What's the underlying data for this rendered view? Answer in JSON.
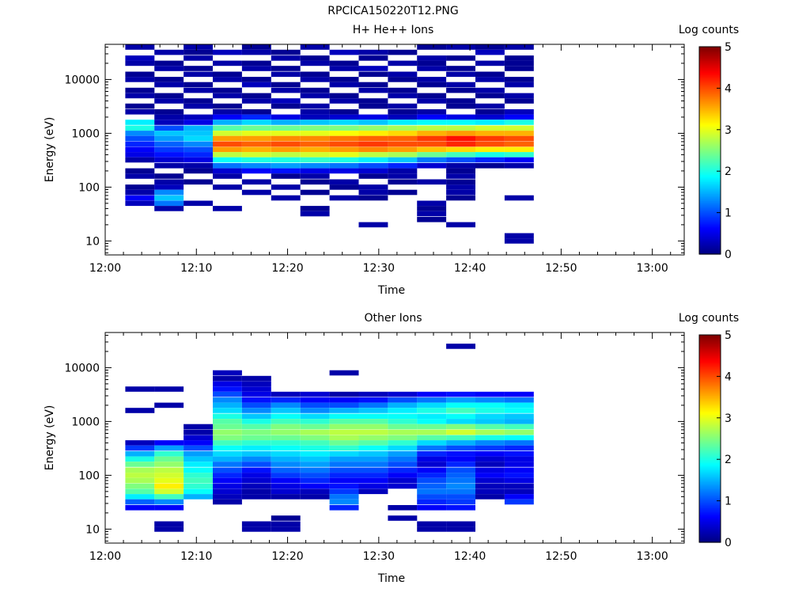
{
  "figure_title": "RPCICA150220T12.PNG",
  "colormap": [
    "#00007f",
    "#0000ff",
    "#007fff",
    "#00ffff",
    "#7fff7f",
    "#ffff00",
    "#ff7f00",
    "#ff0000",
    "#7f0000"
  ],
  "chart_data": [
    {
      "type": "heatmap",
      "title": "H+ He++ Ions",
      "xlabel": "Time",
      "ylabel": "Energy (eV)",
      "x_tick_labels": [
        "12:00",
        "12:10",
        "12:20",
        "12:30",
        "12:40",
        "12:50",
        "13:00"
      ],
      "x_ticks_minutes": [
        0,
        10,
        20,
        30,
        40,
        50,
        60
      ],
      "xlim_minutes": [
        0,
        63.5
      ],
      "y_scale": "log",
      "y_tick_labels": [
        "10",
        "100",
        "1000",
        "10000"
      ],
      "y_ticks": [
        10,
        100,
        1000,
        10000
      ],
      "ylim": [
        5.5,
        45000
      ],
      "colorbar": {
        "label": "Log counts",
        "ticks": [
          0,
          1,
          2,
          3,
          4,
          5
        ],
        "range": [
          0,
          5
        ]
      },
      "column_starts_minutes": [
        2.2,
        5.4,
        8.6,
        11.8,
        15.0,
        18.2,
        21.4,
        24.6,
        27.8,
        31.0,
        34.2,
        37.4,
        40.6,
        43.8
      ],
      "column_width_minutes": 3.2,
      "energy_bins_eV": [
        40000,
        32000,
        25000,
        20000,
        16000,
        12500,
        10000,
        8000,
        6300,
        5000,
        4000,
        3200,
        2500,
        2000,
        1600,
        1250,
        1000,
        800,
        630,
        500,
        400,
        320,
        250,
        200,
        160,
        125,
        100,
        80,
        63,
        50,
        40,
        32,
        25,
        20,
        16,
        12.5,
        10
      ],
      "log_counts": [
        [
          0.2,
          0,
          0.2,
          0,
          0.1,
          0,
          0.2,
          0,
          0,
          0,
          0.1,
          0.2,
          0.1,
          0.2
        ],
        [
          0,
          0.2,
          0.1,
          0.3,
          0.2,
          0.1,
          0,
          0.3,
          0.2,
          0.1,
          0,
          0,
          0.3,
          0
        ],
        [
          0.3,
          0,
          0.2,
          0,
          0,
          0.2,
          0.1,
          0,
          0.1,
          0,
          0.2,
          0.1,
          0,
          0.1
        ],
        [
          0.2,
          0.1,
          0,
          0.2,
          0.1,
          0,
          0.2,
          0.1,
          0,
          0.2,
          0.1,
          0,
          0.2,
          0.1
        ],
        [
          0,
          0.2,
          0.1,
          0,
          0.2,
          0.1,
          0,
          0.2,
          0.3,
          0,
          0.2,
          0.1,
          0,
          0.1
        ],
        [
          0.1,
          0,
          0.2,
          0.1,
          0,
          0.2,
          0.1,
          0,
          0.1,
          0.2,
          0,
          0.2,
          0.1,
          0
        ],
        [
          0.2,
          0.1,
          0,
          0.2,
          0.1,
          0,
          0.2,
          0.1,
          0,
          0.1,
          0.2,
          0,
          0.2,
          0.1
        ],
        [
          0,
          0.2,
          0.1,
          0,
          0.3,
          0.1,
          0,
          0.2,
          0.1,
          0,
          0.1,
          0.2,
          0,
          0.2
        ],
        [
          0.1,
          0,
          0.2,
          0.1,
          0,
          0.2,
          0.1,
          0,
          0.2,
          0.1,
          0,
          0.1,
          0.2,
          0
        ],
        [
          0.2,
          0.1,
          0,
          0.2,
          0.1,
          0,
          0.2,
          0.1,
          0,
          0.2,
          0.1,
          0,
          0.1,
          0.2
        ],
        [
          0,
          0.2,
          0.1,
          0,
          0.2,
          0.3,
          0,
          0.2,
          0.1,
          0,
          0.2,
          0.1,
          0,
          0.1
        ],
        [
          0.1,
          0,
          0.2,
          0.1,
          0,
          0.1,
          0.2,
          0,
          0.1,
          0.2,
          0,
          0.1,
          0.2,
          0
        ],
        [
          0.2,
          0.1,
          0,
          0.2,
          0.1,
          0,
          0.2,
          0.1,
          0,
          0.1,
          0.2,
          0,
          0.1,
          0.3
        ],
        [
          0,
          0.2,
          0.3,
          0.6,
          0.8,
          0.5,
          0.3,
          0.4,
          0.5,
          0.3,
          0.6,
          0.5,
          0.4,
          0.6
        ],
        [
          1.8,
          0.3,
          0.5,
          1.5,
          1.7,
          1.5,
          1.6,
          1.7,
          1.6,
          1.8,
          1.9,
          1.9,
          1.8,
          2.0
        ],
        [
          2.0,
          1.0,
          1.5,
          2.3,
          2.4,
          2.4,
          2.5,
          2.5,
          2.6,
          2.7,
          2.8,
          2.8,
          2.9,
          2.9
        ],
        [
          1.3,
          1.6,
          1.6,
          2.9,
          3.0,
          3.0,
          3.0,
          3.1,
          3.2,
          3.3,
          3.5,
          3.6,
          3.5,
          3.5
        ],
        [
          1.0,
          1.4,
          1.7,
          3.6,
          3.6,
          3.7,
          3.7,
          3.8,
          3.9,
          3.9,
          4.1,
          4.3,
          4.1,
          4.0
        ],
        [
          0.8,
          1.1,
          1.3,
          4.0,
          3.9,
          4.0,
          3.9,
          4.0,
          4.1,
          4.0,
          4.0,
          4.2,
          4.0,
          3.9
        ],
        [
          0.6,
          0.9,
          1.0,
          3.6,
          3.5,
          3.6,
          3.5,
          3.6,
          3.7,
          3.6,
          3.4,
          3.3,
          3.2,
          3.2
        ],
        [
          0.5,
          0.7,
          0.8,
          2.8,
          2.9,
          2.8,
          2.9,
          3.0,
          2.8,
          2.7,
          2.4,
          2.2,
          2.0,
          2.1
        ],
        [
          0.2,
          0.4,
          0.5,
          1.9,
          2.0,
          2.0,
          2.1,
          2.0,
          1.8,
          1.6,
          1.2,
          1.0,
          0.8,
          0.6
        ],
        [
          0,
          0.2,
          0.2,
          1.2,
          1.3,
          1.4,
          1.3,
          1.2,
          1.0,
          0.8,
          0.4,
          0.2,
          0.1,
          0.2
        ],
        [
          0.1,
          0,
          0.1,
          0.4,
          0.6,
          0.7,
          0.5,
          0.5,
          0.4,
          0.2,
          0,
          0.1,
          0,
          0
        ],
        [
          0.2,
          0.1,
          0,
          0.2,
          0,
          0.1,
          0.2,
          0,
          0.1,
          0.2,
          0,
          0.2,
          0,
          0
        ],
        [
          0,
          0.2,
          0.1,
          0,
          0.2,
          0,
          0.1,
          0.2,
          0,
          0.1,
          0.2,
          0.1,
          0,
          0
        ],
        [
          0.1,
          0.3,
          0,
          0.2,
          0,
          0.2,
          0,
          0.1,
          0.2,
          0,
          0,
          0.2,
          0,
          0
        ],
        [
          0.2,
          1.3,
          0,
          0,
          0.2,
          0,
          0.1,
          0,
          0.2,
          0.1,
          0,
          0.2,
          0,
          0
        ],
        [
          0.6,
          1.6,
          0,
          0,
          0,
          0.2,
          0,
          0.2,
          0.1,
          0,
          0,
          0.1,
          0,
          0.2
        ],
        [
          0.3,
          1.2,
          0.2,
          0,
          0,
          0,
          0,
          0,
          0,
          0,
          0.2,
          0,
          0,
          0
        ],
        [
          0,
          0.2,
          0,
          0.2,
          0,
          0,
          0.1,
          0,
          0,
          0,
          0.1,
          0,
          0,
          0
        ],
        [
          0,
          0,
          0,
          0,
          0,
          0,
          0.2,
          0,
          0,
          0,
          0.2,
          0,
          0,
          0
        ],
        [
          0,
          0,
          0,
          0,
          0,
          0,
          0,
          0,
          0,
          0,
          0.1,
          0,
          0,
          0
        ],
        [
          0,
          0,
          0,
          0,
          0,
          0,
          0,
          0,
          0.2,
          0,
          0,
          0.2,
          0,
          0
        ],
        [
          0,
          0,
          0,
          0,
          0,
          0,
          0,
          0,
          0,
          0,
          0,
          0,
          0,
          0
        ],
        [
          0,
          0,
          0,
          0,
          0,
          0,
          0,
          0,
          0,
          0,
          0,
          0,
          0,
          0.2
        ],
        [
          0,
          0,
          0,
          0,
          0,
          0,
          0,
          0,
          0,
          0,
          0,
          0,
          0,
          0.2
        ]
      ]
    },
    {
      "type": "heatmap",
      "title": "Other Ions",
      "xlabel": "Time",
      "ylabel": "Energy (eV)",
      "x_tick_labels": [
        "12:00",
        "12:10",
        "12:20",
        "12:30",
        "12:40",
        "12:50",
        "13:00"
      ],
      "x_ticks_minutes": [
        0,
        10,
        20,
        30,
        40,
        50,
        60
      ],
      "xlim_minutes": [
        0,
        63.5
      ],
      "y_scale": "log",
      "y_tick_labels": [
        "10",
        "100",
        "1000",
        "10000"
      ],
      "y_ticks": [
        10,
        100,
        1000,
        10000
      ],
      "ylim": [
        5.5,
        45000
      ],
      "colorbar": {
        "label": "Log counts",
        "ticks": [
          0,
          1,
          2,
          3,
          4,
          5
        ],
        "range": [
          0,
          5
        ]
      },
      "column_starts_minutes": [
        2.2,
        5.4,
        8.6,
        11.8,
        15.0,
        18.2,
        21.4,
        24.6,
        27.8,
        31.0,
        34.2,
        37.4,
        40.6,
        43.8
      ],
      "column_width_minutes": 3.2,
      "energy_bins_eV": [
        40000,
        32000,
        25000,
        20000,
        16000,
        12500,
        10000,
        8000,
        6300,
        5000,
        4000,
        3200,
        2500,
        2000,
        1600,
        1250,
        1000,
        800,
        630,
        500,
        400,
        320,
        250,
        200,
        160,
        125,
        100,
        80,
        63,
        50,
        40,
        32,
        25,
        20,
        16,
        12.5,
        10
      ],
      "log_counts": [
        [
          0,
          0,
          0,
          0,
          0,
          0,
          0,
          0,
          0,
          0,
          0,
          0,
          0,
          0
        ],
        [
          0,
          0,
          0,
          0,
          0,
          0,
          0,
          0,
          0,
          0,
          0,
          0,
          0,
          0
        ],
        [
          0,
          0,
          0,
          0,
          0,
          0,
          0,
          0,
          0,
          0,
          0,
          0.2,
          0,
          0
        ],
        [
          0,
          0,
          0,
          0,
          0,
          0,
          0,
          0,
          0,
          0,
          0,
          0,
          0,
          0
        ],
        [
          0,
          0,
          0,
          0,
          0,
          0,
          0,
          0,
          0,
          0,
          0,
          0,
          0,
          0
        ],
        [
          0,
          0,
          0,
          0,
          0,
          0,
          0,
          0,
          0,
          0,
          0,
          0,
          0,
          0
        ],
        [
          0,
          0,
          0,
          0,
          0,
          0,
          0,
          0,
          0,
          0,
          0,
          0,
          0,
          0
        ],
        [
          0,
          0,
          0,
          0.3,
          0,
          0,
          0,
          0.2,
          0,
          0,
          0,
          0,
          0,
          0
        ],
        [
          0,
          0,
          0,
          0.2,
          0.2,
          0,
          0,
          0,
          0,
          0,
          0,
          0,
          0,
          0
        ],
        [
          0,
          0,
          0,
          0.5,
          0.3,
          0,
          0,
          0,
          0,
          0,
          0,
          0,
          0,
          0
        ],
        [
          0.2,
          0.2,
          0,
          0.7,
          0.4,
          0,
          0,
          0,
          0,
          0,
          0,
          0,
          0,
          0
        ],
        [
          0,
          0,
          0,
          1.0,
          0.5,
          0.3,
          0.4,
          0.2,
          0.3,
          0.4,
          0.6,
          0.7,
          0.6,
          0.6
        ],
        [
          0,
          0,
          0,
          1.3,
          0.7,
          0.8,
          0.6,
          0.6,
          0.7,
          1.0,
          1.2,
          1.4,
          1.3,
          1.2
        ],
        [
          0,
          0.2,
          0,
          1.5,
          1.0,
          1.3,
          1.0,
          1.0,
          1.2,
          1.5,
          1.7,
          1.9,
          1.9,
          1.8
        ],
        [
          0.2,
          0,
          0,
          1.7,
          1.3,
          1.6,
          1.3,
          1.5,
          1.6,
          1.8,
          2.0,
          2.2,
          2.0,
          1.9
        ],
        [
          0,
          0,
          0,
          2.0,
          1.6,
          1.9,
          1.7,
          1.9,
          1.9,
          1.9,
          1.8,
          1.9,
          1.7,
          1.6
        ],
        [
          0,
          0,
          0,
          2.3,
          2.0,
          2.2,
          2.1,
          2.3,
          2.3,
          2.1,
          1.9,
          1.7,
          1.6,
          1.5
        ],
        [
          0,
          0,
          0.2,
          2.4,
          2.3,
          2.5,
          2.4,
          2.6,
          2.6,
          2.4,
          2.4,
          2.5,
          2.3,
          2.2
        ],
        [
          0,
          0,
          0.2,
          2.6,
          2.5,
          2.6,
          2.7,
          2.8,
          2.8,
          2.7,
          2.7,
          2.9,
          2.7,
          2.6
        ],
        [
          0,
          0,
          0.4,
          2.5,
          2.4,
          2.4,
          2.5,
          2.7,
          2.6,
          2.5,
          2.3,
          2.2,
          2.0,
          1.9
        ],
        [
          0.3,
          0.6,
          0.6,
          2.2,
          2.1,
          2.1,
          2.2,
          2.4,
          2.3,
          2.1,
          1.7,
          1.5,
          1.3,
          1.2
        ],
        [
          0.9,
          1.4,
          1.0,
          1.9,
          1.8,
          1.9,
          2.0,
          2.1,
          1.9,
          1.7,
          1.2,
          1.0,
          0.9,
          0.8
        ],
        [
          1.5,
          2.1,
          1.4,
          1.7,
          1.6,
          1.7,
          1.8,
          1.7,
          1.6,
          1.4,
          0.8,
          0.7,
          0.6,
          0.7
        ],
        [
          2.0,
          2.4,
          1.6,
          1.5,
          1.3,
          1.5,
          1.6,
          1.4,
          1.4,
          1.2,
          0.5,
          0.6,
          0.4,
          0.5
        ],
        [
          2.4,
          2.6,
          1.8,
          1.2,
          1.0,
          1.3,
          1.4,
          1.2,
          1.2,
          1.0,
          0.4,
          0.8,
          0.3,
          0.5
        ],
        [
          2.7,
          2.8,
          1.9,
          1.0,
          0.7,
          1.1,
          1.2,
          1.0,
          1.0,
          0.8,
          0.6,
          1.0,
          0.5,
          0.6
        ],
        [
          2.8,
          2.9,
          2.1,
          0.8,
          0.5,
          0.9,
          1.0,
          0.8,
          0.8,
          0.6,
          0.8,
          1.1,
          0.6,
          0.7
        ],
        [
          2.7,
          3.0,
          2.2,
          0.6,
          0.4,
          0.6,
          0.8,
          0.6,
          0.6,
          0.4,
          1.0,
          1.2,
          0.4,
          0.5
        ],
        [
          2.5,
          3.2,
          2.1,
          0.5,
          0.3,
          0.5,
          0.6,
          0.7,
          0.5,
          0.4,
          1.1,
          1.3,
          0.3,
          0.3
        ],
        [
          2.3,
          2.9,
          1.9,
          0.4,
          0.2,
          0.4,
          0.3,
          0.9,
          0.3,
          0,
          1.2,
          1.2,
          0.3,
          0.3
        ],
        [
          1.8,
          2.2,
          1.5,
          0.3,
          0.2,
          0.2,
          0.2,
          1.2,
          0,
          0,
          1.0,
          1.0,
          0.2,
          0.6
        ],
        [
          1.1,
          1.3,
          0,
          0.2,
          0,
          0,
          0,
          1.3,
          0,
          0,
          0.8,
          0.9,
          0,
          0.9
        ],
        [
          0.6,
          0.6,
          0,
          0,
          0,
          0,
          0,
          0.8,
          0,
          0.2,
          0.6,
          0.7,
          0,
          0
        ],
        [
          0,
          0,
          0,
          0,
          0,
          0,
          0,
          0,
          0,
          0,
          0,
          0,
          0,
          0
        ],
        [
          0,
          0,
          0,
          0,
          0,
          0.1,
          0,
          0,
          0,
          0.2,
          0,
          0,
          0,
          0
        ],
        [
          0,
          0.2,
          0,
          0,
          0.2,
          0.2,
          0,
          0,
          0,
          0,
          0.2,
          0.2,
          0,
          0
        ],
        [
          0,
          0.2,
          0,
          0,
          0.2,
          0.2,
          0,
          0,
          0,
          0,
          0.2,
          0.2,
          0,
          0
        ]
      ]
    }
  ]
}
